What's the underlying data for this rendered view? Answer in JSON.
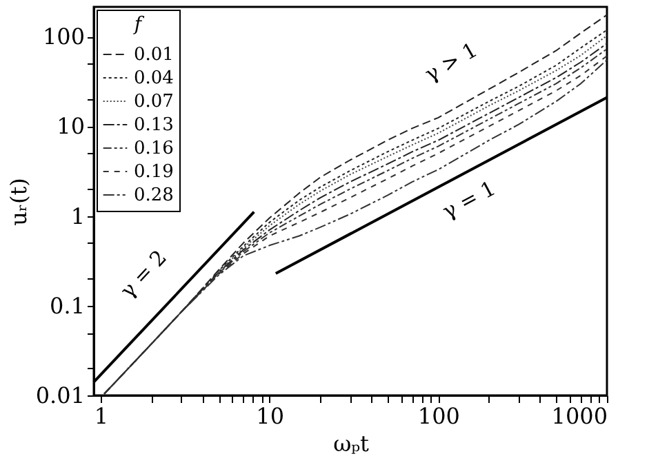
{
  "chart_data": {
    "type": "line",
    "xlabel": "ωₚt",
    "ylabel": "uᵣ(t)",
    "legend_title": "f",
    "legend": "top left",
    "log": "xy",
    "grid": false,
    "marker": "none",
    "xlim": [
      0.91,
      1000
    ],
    "ylim": [
      0.01,
      215
    ],
    "xticks": [
      1,
      {
        "value": 2,
        "label": null
      },
      {
        "value": 3,
        "label": null
      },
      {
        "value": 4,
        "label": null
      },
      {
        "value": 5,
        "label": null
      },
      {
        "value": 6,
        "label": null
      },
      {
        "value": 7,
        "label": null
      },
      {
        "value": 8,
        "label": null
      },
      {
        "value": 9,
        "label": null
      },
      10,
      {
        "value": 20,
        "label": null
      },
      {
        "value": 30,
        "label": null
      },
      {
        "value": 40,
        "label": null
      },
      {
        "value": 50,
        "label": null
      },
      {
        "value": 60,
        "label": null
      },
      {
        "value": 70,
        "label": null
      },
      {
        "value": 80,
        "label": null
      },
      {
        "value": 90,
        "label": null
      },
      100,
      {
        "value": 200,
        "label": null
      },
      {
        "value": 300,
        "label": null
      },
      {
        "value": 400,
        "label": null
      },
      {
        "value": 500,
        "label": null
      },
      {
        "value": 600,
        "label": null
      },
      {
        "value": 700,
        "label": null
      },
      {
        "value": 800,
        "label": null
      },
      {
        "value": 900,
        "label": null
      },
      1000
    ],
    "yticks": [
      0.01,
      {
        "value": 0.02,
        "label": null
      },
      {
        "value": 0.05,
        "label": null
      },
      0.1,
      {
        "value": 0.2,
        "label": null
      },
      {
        "value": 0.5,
        "label": null
      },
      1,
      {
        "value": 2,
        "label": null
      },
      {
        "value": 5,
        "label": null
      },
      10,
      {
        "value": 20,
        "label": null
      },
      {
        "value": 50,
        "label": null
      },
      100
    ],
    "x": [
      1.05,
      2,
      3,
      5,
      7,
      10,
      15,
      20,
      30,
      50,
      70,
      100,
      200,
      300,
      500,
      700,
      1000
    ],
    "series": [
      {
        "name": "0.01",
        "color": "#222222",
        "line_style": "dashed",
        "values": [
          0.0104,
          0.0376,
          0.085,
          0.25,
          0.5,
          0.95,
          1.8,
          2.7,
          4.2,
          7,
          9.5,
          12.5,
          26,
          40,
          70,
          110,
          175
        ]
      },
      {
        "name": "0.04",
        "color": "#222222",
        "line_style": "dotted",
        "values": [
          0.0104,
          0.0376,
          0.085,
          0.245,
          0.46,
          0.85,
          1.5,
          2.1,
          3.2,
          5.2,
          7,
          9.5,
          19,
          28,
          48,
          75,
          119
        ]
      },
      {
        "name": "0.07",
        "color": "#444444",
        "line_style": "dotted",
        "values": [
          0.0104,
          0.0376,
          0.085,
          0.24,
          0.44,
          0.78,
          1.35,
          1.9,
          2.9,
          4.6,
          6.2,
          8.4,
          17,
          25,
          42,
          62,
          103
        ]
      },
      {
        "name": "0.13",
        "color": "#222222",
        "line_style": "dashed",
        "values": [
          0.0104,
          0.0376,
          0.085,
          0.235,
          0.42,
          0.7,
          1.15,
          1.6,
          2.4,
          3.8,
          5.2,
          7,
          14,
          21,
          35,
          52,
          84
        ]
      },
      {
        "name": "0.16",
        "color": "#333333",
        "line_style": "dashed",
        "values": [
          0.0104,
          0.0376,
          0.085,
          0.23,
          0.4,
          0.65,
          1.0,
          1.35,
          2.0,
          3.2,
          4.4,
          6,
          12,
          18,
          30,
          45,
          73
        ]
      },
      {
        "name": "0.19",
        "color": "#333333",
        "line_style": "dashed",
        "values": [
          0.0104,
          0.0376,
          0.085,
          0.225,
          0.38,
          0.6,
          0.85,
          1.1,
          1.6,
          2.6,
          3.6,
          5,
          10,
          15,
          25,
          37,
          61
        ]
      },
      {
        "name": "0.28",
        "color": "#333333",
        "line_style": "dashed",
        "values": [
          0.0104,
          0.0376,
          0.085,
          0.22,
          0.36,
          0.47,
          0.6,
          0.75,
          1.05,
          1.7,
          2.4,
          3.3,
          7,
          10.5,
          19,
          30,
          55
        ]
      },
      {
        "type": "line",
        "color": "#000000",
        "line_style": "solid",
        "x": [
          0.91,
          8.1
        ],
        "values": [
          0.0141,
          1.11
        ]
      },
      {
        "type": "line",
        "color": "#000000",
        "line_style": "solid",
        "x": [
          10.9,
          1000
        ],
        "values": [
          0.229,
          21
        ]
      }
    ],
    "annotations": [
      "γ = 2",
      "γ = 1",
      "γ > 1"
    ]
  }
}
